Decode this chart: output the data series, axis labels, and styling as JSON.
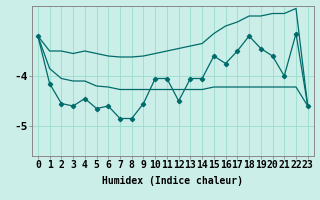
{
  "title": "",
  "xlabel": "Humidex (Indice chaleur)",
  "background_color": "#cceee8",
  "line_color": "#006b6b",
  "grid_color": "#99ddcc",
  "x": [
    0,
    1,
    2,
    3,
    4,
    5,
    6,
    7,
    8,
    9,
    10,
    11,
    12,
    13,
    14,
    15,
    16,
    17,
    18,
    19,
    20,
    21,
    22,
    23
  ],
  "y_main": [
    -3.2,
    -4.15,
    -4.55,
    -4.6,
    -4.45,
    -4.65,
    -4.6,
    -4.85,
    -4.85,
    -4.55,
    -4.05,
    -4.05,
    -4.5,
    -4.05,
    -4.05,
    -3.6,
    -3.75,
    -3.5,
    -3.2,
    -3.45,
    -3.6,
    -4.0,
    -3.15,
    -4.6
  ],
  "y_upper": [
    -3.2,
    -3.5,
    -3.5,
    -3.55,
    -3.5,
    -3.55,
    -3.6,
    -3.62,
    -3.62,
    -3.6,
    -3.55,
    -3.5,
    -3.45,
    -3.4,
    -3.35,
    -3.15,
    -3.0,
    -2.92,
    -2.8,
    -2.8,
    -2.75,
    -2.75,
    -2.65,
    -4.6
  ],
  "y_lower": [
    -3.2,
    -3.85,
    -4.05,
    -4.1,
    -4.1,
    -4.2,
    -4.22,
    -4.27,
    -4.27,
    -4.27,
    -4.27,
    -4.27,
    -4.27,
    -4.27,
    -4.27,
    -4.22,
    -4.22,
    -4.22,
    -4.22,
    -4.22,
    -4.22,
    -4.22,
    -4.22,
    -4.6
  ],
  "ylim": [
    -5.6,
    -2.6
  ],
  "yticks": [
    -5.0,
    -4.0
  ],
  "tick_fontsize": 7,
  "label_fontsize": 7
}
